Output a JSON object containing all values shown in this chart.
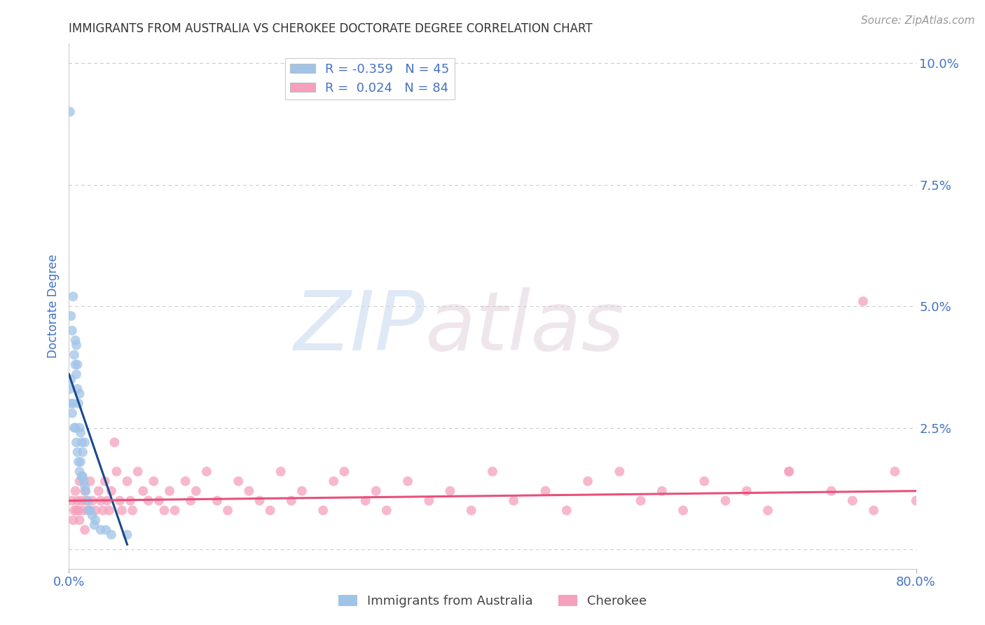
{
  "title": "IMMIGRANTS FROM AUSTRALIA VS CHEROKEE DOCTORATE DEGREE CORRELATION CHART",
  "source": "Source: ZipAtlas.com",
  "ylabel": "Doctorate Degree",
  "right_ytick_vals": [
    0.0,
    0.025,
    0.05,
    0.075,
    0.1
  ],
  "right_ytick_labels": [
    "",
    "2.5%",
    "5.0%",
    "7.5%",
    "10.0%"
  ],
  "blue_label": "Immigrants from Australia",
  "pink_label": "Cherokee",
  "blue_R": -0.359,
  "blue_N": 45,
  "pink_R": 0.024,
  "pink_N": 84,
  "blue_color": "#a0c4e8",
  "pink_color": "#f5a0bc",
  "blue_line_color": "#1a4a8a",
  "pink_line_color": "#e8507a",
  "watermark_zip_color": "#c8d8ee",
  "watermark_atlas_color": "#d8c8d8",
  "background_color": "#ffffff",
  "grid_color": "#cccccc",
  "title_color": "#333333",
  "axis_label_color": "#4472c4",
  "blue_points_x": [
    0.001,
    0.002,
    0.002,
    0.002,
    0.003,
    0.003,
    0.004,
    0.004,
    0.005,
    0.005,
    0.006,
    0.006,
    0.006,
    0.007,
    0.007,
    0.007,
    0.008,
    0.008,
    0.008,
    0.009,
    0.009,
    0.01,
    0.01,
    0.01,
    0.011,
    0.011,
    0.012,
    0.012,
    0.013,
    0.013,
    0.014,
    0.015,
    0.015,
    0.016,
    0.018,
    0.019,
    0.02,
    0.022,
    0.024,
    0.025,
    0.03,
    0.035,
    0.04,
    0.055,
    0.001
  ],
  "blue_points_y": [
    0.033,
    0.03,
    0.035,
    0.048,
    0.028,
    0.045,
    0.03,
    0.052,
    0.025,
    0.04,
    0.025,
    0.038,
    0.043,
    0.022,
    0.036,
    0.042,
    0.02,
    0.033,
    0.038,
    0.018,
    0.03,
    0.016,
    0.025,
    0.032,
    0.018,
    0.024,
    0.015,
    0.022,
    0.015,
    0.02,
    0.014,
    0.013,
    0.022,
    0.012,
    0.01,
    0.008,
    0.008,
    0.007,
    0.005,
    0.006,
    0.004,
    0.004,
    0.003,
    0.003,
    0.09
  ],
  "pink_points_x": [
    0.003,
    0.005,
    0.006,
    0.008,
    0.009,
    0.01,
    0.012,
    0.013,
    0.015,
    0.016,
    0.018,
    0.02,
    0.022,
    0.025,
    0.028,
    0.03,
    0.032,
    0.034,
    0.036,
    0.038,
    0.04,
    0.043,
    0.045,
    0.048,
    0.05,
    0.055,
    0.058,
    0.06,
    0.065,
    0.07,
    0.075,
    0.08,
    0.085,
    0.09,
    0.095,
    0.1,
    0.11,
    0.115,
    0.12,
    0.13,
    0.14,
    0.15,
    0.16,
    0.17,
    0.18,
    0.19,
    0.2,
    0.21,
    0.22,
    0.24,
    0.25,
    0.26,
    0.28,
    0.29,
    0.3,
    0.32,
    0.34,
    0.36,
    0.38,
    0.4,
    0.42,
    0.45,
    0.47,
    0.49,
    0.52,
    0.54,
    0.56,
    0.58,
    0.6,
    0.62,
    0.64,
    0.66,
    0.68,
    0.72,
    0.74,
    0.76,
    0.78,
    0.8,
    0.004,
    0.007,
    0.01,
    0.015,
    0.75,
    0.68
  ],
  "pink_points_y": [
    0.01,
    0.008,
    0.012,
    0.01,
    0.008,
    0.014,
    0.01,
    0.008,
    0.012,
    0.01,
    0.008,
    0.014,
    0.01,
    0.008,
    0.012,
    0.01,
    0.008,
    0.014,
    0.01,
    0.008,
    0.012,
    0.022,
    0.016,
    0.01,
    0.008,
    0.014,
    0.01,
    0.008,
    0.016,
    0.012,
    0.01,
    0.014,
    0.01,
    0.008,
    0.012,
    0.008,
    0.014,
    0.01,
    0.012,
    0.016,
    0.01,
    0.008,
    0.014,
    0.012,
    0.01,
    0.008,
    0.016,
    0.01,
    0.012,
    0.008,
    0.014,
    0.016,
    0.01,
    0.012,
    0.008,
    0.014,
    0.01,
    0.012,
    0.008,
    0.016,
    0.01,
    0.012,
    0.008,
    0.014,
    0.016,
    0.01,
    0.012,
    0.008,
    0.014,
    0.01,
    0.012,
    0.008,
    0.016,
    0.012,
    0.01,
    0.008,
    0.016,
    0.01,
    0.006,
    0.008,
    0.006,
    0.004,
    0.051,
    0.016
  ],
  "blue_trend_x": [
    0.0,
    0.055
  ],
  "blue_trend_y": [
    0.036,
    0.001
  ],
  "pink_trend_x": [
    0.0,
    0.8
  ],
  "pink_trend_y": [
    0.01,
    0.012
  ],
  "xlim": [
    0.0,
    0.8
  ],
  "ylim": [
    -0.004,
    0.104
  ]
}
